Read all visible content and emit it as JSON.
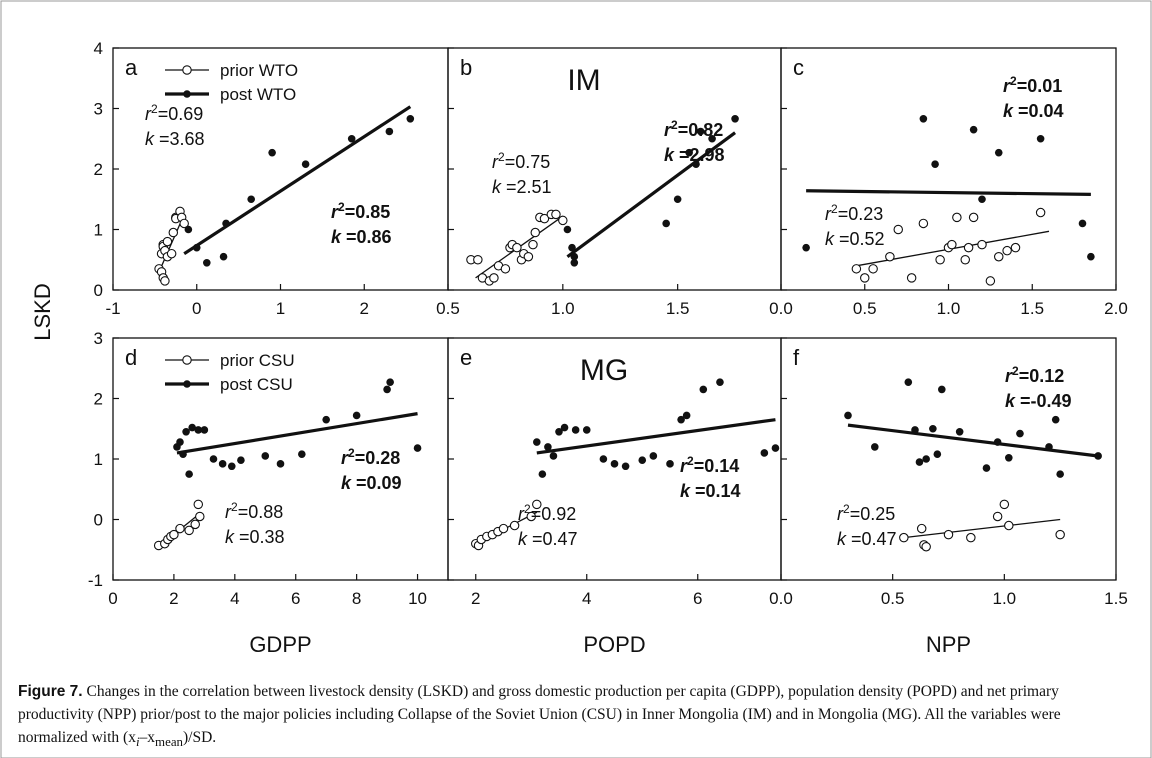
{
  "figure": {
    "ylabel": "LSKD",
    "caption": {
      "label": "Figure 7.",
      "text": " Changes in the correlation between livestock density (LSKD) and gross domestic production per capita (GDPP), population density (POPD) and net primary productivity (NPP) prior/post to the major policies including Collapse of the Soviet Union (CSU) in Inner Mongolia (IM) and in Mongolia (MG). All the variables were normalized with (x",
      "sub_i": "i",
      "dash": "–x",
      "sub_mean": "mean",
      "tail": ")/SD."
    }
  },
  "chart_data": [
    {
      "panel": "a",
      "type": "scatter",
      "xlabel": "",
      "ylabel": "LSKD",
      "xlim": [
        -1,
        3
      ],
      "ylim": [
        0,
        4
      ],
      "xticks": [
        "-1",
        "0",
        "1",
        "2"
      ],
      "yticks": [
        "0",
        "1",
        "2",
        "3",
        "4"
      ],
      "legend": {
        "prior": "prior WTO",
        "post": "post  WTO"
      },
      "prior": {
        "x": [
          -0.45,
          -0.42,
          -0.42,
          -0.4,
          -0.4,
          -0.38,
          -0.4,
          -0.38,
          -0.35,
          -0.35,
          -0.3,
          -0.28,
          -0.25,
          -0.25,
          -0.2,
          -0.18,
          -0.15
        ],
        "y": [
          0.35,
          0.3,
          0.6,
          0.75,
          0.72,
          0.65,
          0.2,
          0.15,
          0.55,
          0.8,
          0.6,
          0.95,
          1.2,
          1.18,
          1.3,
          1.2,
          1.1
        ],
        "fit": [
          [
            -0.45,
            0.3
          ],
          [
            -0.15,
            1.25
          ]
        ],
        "r2": "0.69",
        "k": "3.68"
      },
      "post": {
        "x": [
          -0.1,
          0.0,
          0.12,
          0.32,
          0.35,
          0.65,
          0.9,
          1.3,
          1.85,
          2.3,
          2.55
        ],
        "y": [
          1.0,
          0.7,
          0.45,
          0.55,
          1.1,
          1.5,
          2.27,
          2.08,
          2.5,
          2.62,
          2.83
        ],
        "fit": [
          [
            -0.15,
            0.6
          ],
          [
            2.55,
            3.03
          ]
        ],
        "r2": "0.85",
        "k": "0.86"
      }
    },
    {
      "panel": "b",
      "title": "IM",
      "type": "scatter",
      "xlim": [
        0.5,
        1.95
      ],
      "ylim": [
        0,
        4
      ],
      "xticks": [
        "0.5",
        "1.0",
        "1.5"
      ],
      "prior": {
        "x": [
          0.6,
          0.63,
          0.65,
          0.68,
          0.7,
          0.72,
          0.75,
          0.77,
          0.78,
          0.8,
          0.82,
          0.83,
          0.85,
          0.87,
          0.88,
          0.9,
          0.92,
          0.95,
          0.97,
          1.0
        ],
        "y": [
          0.5,
          0.5,
          0.2,
          0.15,
          0.2,
          0.4,
          0.35,
          0.7,
          0.75,
          0.7,
          0.5,
          0.6,
          0.55,
          0.75,
          0.95,
          1.2,
          1.18,
          1.25,
          1.25,
          1.15
        ],
        "fit": [
          [
            0.62,
            0.2
          ],
          [
            1.0,
            1.22
          ]
        ],
        "r2": "0.75",
        "k": "2.51"
      },
      "post": {
        "x": [
          1.02,
          1.04,
          1.05,
          1.05,
          1.45,
          1.5,
          1.55,
          1.58,
          1.6,
          1.65,
          1.75
        ],
        "y": [
          1.0,
          0.7,
          0.55,
          0.45,
          1.1,
          1.5,
          2.27,
          2.08,
          2.62,
          2.5,
          2.83
        ],
        "fit": [
          [
            1.02,
            0.55
          ],
          [
            1.75,
            2.6
          ]
        ],
        "r2": "0.82",
        "k": "2.98"
      }
    },
    {
      "panel": "c",
      "type": "scatter",
      "xlim": [
        0.0,
        2.0
      ],
      "ylim": [
        0,
        4
      ],
      "xticks": [
        "0.0",
        "0.5",
        "1.0",
        "1.5",
        "2.0"
      ],
      "prior": {
        "x": [
          0.45,
          0.5,
          0.55,
          0.65,
          0.7,
          0.78,
          0.85,
          0.95,
          1.0,
          1.02,
          1.05,
          1.1,
          1.12,
          1.15,
          1.2,
          1.25,
          1.3,
          1.35,
          1.4,
          1.55
        ],
        "y": [
          0.35,
          0.2,
          0.35,
          0.55,
          1.0,
          0.2,
          1.1,
          0.5,
          0.7,
          0.75,
          1.2,
          0.5,
          0.7,
          1.2,
          0.75,
          0.15,
          0.55,
          0.65,
          0.7,
          1.28
        ],
        "fit": [
          [
            0.45,
            0.4
          ],
          [
            1.6,
            0.97
          ]
        ],
        "r2": "0.23",
        "k": "0.52"
      },
      "post": {
        "x": [
          0.15,
          0.85,
          0.92,
          1.15,
          1.2,
          1.3,
          1.55,
          1.8,
          1.85
        ],
        "y": [
          0.7,
          2.83,
          2.08,
          2.65,
          1.5,
          2.27,
          2.5,
          1.1,
          0.55
        ],
        "fit": [
          [
            0.15,
            1.64
          ],
          [
            1.85,
            1.58
          ]
        ],
        "r2": "0.01",
        "k": "0.04"
      }
    },
    {
      "panel": "d",
      "type": "scatter",
      "xlabel": "GDPP",
      "ylabel": "LSKD",
      "xlim": [
        0,
        11
      ],
      "ylim": [
        -1,
        3
      ],
      "xticks": [
        "0",
        "2",
        "4",
        "6",
        "8",
        "10"
      ],
      "yticks": [
        "-1",
        "0",
        "1",
        "2",
        "3"
      ],
      "legend": {
        "prior": "prior CSU",
        "post": "post  CSU"
      },
      "prior": {
        "x": [
          1.5,
          1.7,
          1.8,
          1.9,
          2.0,
          2.2,
          2.5,
          2.7,
          2.85,
          2.8
        ],
        "y": [
          -0.43,
          -0.4,
          -0.33,
          -0.28,
          -0.25,
          -0.15,
          -0.18,
          -0.08,
          0.05,
          0.25
        ],
        "fit": [
          [
            1.5,
            -0.45
          ],
          [
            2.85,
            0.1
          ]
        ],
        "r2": "0.88",
        "k": "0.38"
      },
      "post": {
        "x": [
          2.1,
          2.2,
          2.3,
          2.4,
          2.5,
          2.6,
          2.8,
          3.0,
          3.3,
          3.6,
          3.9,
          4.2,
          5.0,
          5.5,
          6.2,
          7.0,
          8.0,
          9.0,
          9.1,
          10.0
        ],
        "y": [
          1.2,
          1.28,
          1.08,
          1.45,
          0.75,
          1.52,
          1.48,
          1.48,
          1.0,
          0.92,
          0.88,
          0.98,
          1.05,
          0.92,
          1.08,
          1.65,
          1.72,
          2.15,
          2.27,
          1.18
        ],
        "fit": [
          [
            2.1,
            1.1
          ],
          [
            10.0,
            1.75
          ]
        ],
        "r2": "0.28",
        "k": "0.09"
      }
    },
    {
      "panel": "e",
      "title": "MG",
      "type": "scatter",
      "xlabel": "POPD",
      "xlim": [
        1.5,
        7.5
      ],
      "ylim": [
        -1,
        3
      ],
      "xticks": [
        "2",
        "4",
        "6"
      ],
      "prior": {
        "x": [
          2.0,
          2.05,
          2.1,
          2.2,
          2.3,
          2.4,
          2.5,
          2.7,
          3.0,
          3.1
        ],
        "y": [
          -0.4,
          -0.43,
          -0.33,
          -0.28,
          -0.25,
          -0.2,
          -0.15,
          -0.1,
          0.05,
          0.25
        ],
        "fit": [
          [
            2.0,
            -0.4
          ],
          [
            3.1,
            0.12
          ]
        ],
        "r2": "0.92",
        "k": "0.47"
      },
      "post": {
        "x": [
          3.1,
          3.2,
          3.3,
          3.4,
          3.5,
          3.6,
          3.8,
          4.0,
          4.3,
          4.5,
          4.7,
          5.0,
          5.2,
          5.5,
          5.7,
          5.8,
          6.1,
          6.4,
          7.2,
          7.4
        ],
        "y": [
          1.28,
          0.75,
          1.2,
          1.05,
          1.45,
          1.52,
          1.48,
          1.48,
          1.0,
          0.92,
          0.88,
          0.98,
          1.05,
          0.92,
          1.65,
          1.72,
          2.15,
          2.27,
          1.1,
          1.18
        ],
        "fit": [
          [
            3.1,
            1.1
          ],
          [
            7.4,
            1.65
          ]
        ],
        "r2": "0.14",
        "k": "0.14"
      }
    },
    {
      "panel": "f",
      "type": "scatter",
      "xlabel": "NPP",
      "xlim": [
        0.0,
        1.5
      ],
      "ylim": [
        -1,
        3
      ],
      "xticks": [
        "0.0",
        "0.5",
        "1.0",
        "1.5"
      ],
      "prior": {
        "x": [
          0.55,
          0.63,
          0.64,
          0.65,
          0.75,
          0.85,
          0.97,
          1.0,
          1.02,
          1.25
        ],
        "y": [
          -0.3,
          -0.15,
          -0.42,
          -0.45,
          -0.25,
          -0.3,
          0.05,
          0.25,
          -0.1,
          -0.25
        ],
        "fit": [
          [
            0.55,
            -0.3
          ],
          [
            1.25,
            0.0
          ]
        ],
        "r2": "0.25",
        "k": "0.47"
      },
      "post": {
        "x": [
          0.3,
          0.42,
          0.57,
          0.6,
          0.62,
          0.65,
          0.68,
          0.7,
          0.72,
          0.8,
          0.92,
          0.97,
          1.02,
          1.07,
          1.2,
          1.23,
          1.25,
          1.42
        ],
        "y": [
          1.72,
          1.2,
          2.27,
          1.48,
          0.95,
          1.0,
          1.5,
          1.08,
          2.15,
          1.45,
          0.85,
          1.28,
          1.02,
          1.42,
          1.2,
          1.65,
          0.75,
          1.05
        ],
        "fit": [
          [
            0.3,
            1.56
          ],
          [
            1.42,
            1.05
          ]
        ],
        "r2": "0.12",
        "k": "-0.49"
      }
    }
  ]
}
